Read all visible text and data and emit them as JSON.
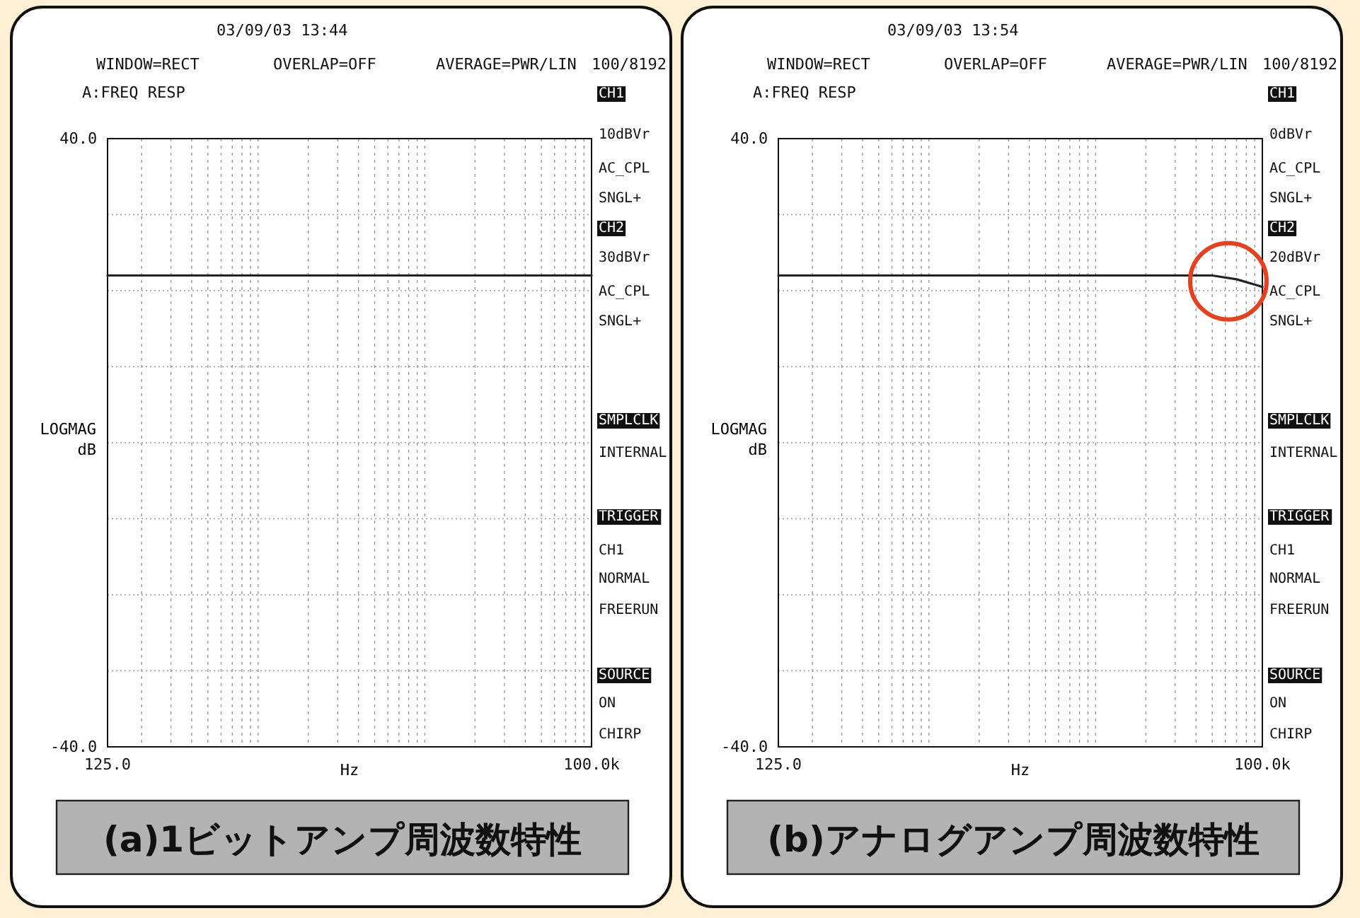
{
  "chart_data": [
    {
      "type": "line",
      "title": "(a)1ビットアンプ周波数特性",
      "xlabel": "Hz",
      "ylabel": "LOGMAG dB",
      "log": "x",
      "grid": true,
      "xlim": [
        125,
        100000
      ],
      "ylim": [
        -40,
        40
      ],
      "xticks": [
        {
          "value": 125,
          "label": "125.0"
        },
        {
          "value": 200,
          "label": null
        },
        {
          "value": 300,
          "label": null
        },
        {
          "value": 400,
          "label": null
        },
        {
          "value": 500,
          "label": null
        },
        {
          "value": 600,
          "label": null
        },
        {
          "value": 700,
          "label": null
        },
        {
          "value": 800,
          "label": null
        },
        {
          "value": 900,
          "label": null
        },
        {
          "value": 1000,
          "label": null
        },
        {
          "value": 2000,
          "label": null
        },
        {
          "value": 3000,
          "label": null
        },
        {
          "value": 4000,
          "label": null
        },
        {
          "value": 5000,
          "label": null
        },
        {
          "value": 6000,
          "label": null
        },
        {
          "value": 7000,
          "label": null
        },
        {
          "value": 8000,
          "label": null
        },
        {
          "value": 9000,
          "label": null
        },
        {
          "value": 10000,
          "label": null
        },
        {
          "value": 20000,
          "label": null
        },
        {
          "value": 30000,
          "label": null
        },
        {
          "value": 40000,
          "label": null
        },
        {
          "value": 50000,
          "label": null
        },
        {
          "value": 60000,
          "label": null
        },
        {
          "value": 70000,
          "label": null
        },
        {
          "value": 80000,
          "label": null
        },
        {
          "value": 90000,
          "label": null
        },
        {
          "value": 100000,
          "label": "100.0k"
        }
      ],
      "yticks": [
        {
          "value": -40,
          "label": "-40.0"
        },
        {
          "value": -30,
          "label": null
        },
        {
          "value": -20,
          "label": null
        },
        {
          "value": -10,
          "label": null
        },
        {
          "value": 0,
          "label": null
        },
        {
          "value": 10,
          "label": null
        },
        {
          "value": 20,
          "label": null
        },
        {
          "value": 30,
          "label": null
        },
        {
          "value": 40,
          "label": "40.0"
        }
      ],
      "x": [
        125,
        1000,
        10000,
        100000
      ],
      "series": [
        {
          "color": "#222222",
          "values": [
            22,
            22,
            22,
            22
          ]
        }
      ],
      "annotations": [
        "03/09/03 13:44",
        "WINDOW=RECT",
        "OVERLAP=OFF",
        "AVERAGE=PWR/LIN",
        "100/8192",
        "A:FREQ RESP",
        "CH1",
        "10dBVr",
        "AC_CPL",
        "SNGL+",
        "CH2",
        "30dBVr",
        "AC_CPL",
        "SNGL+",
        "SMPLCLK",
        "INTERNAL",
        "TRIGGER",
        "CH1",
        "NORMAL",
        "FREERUN",
        "SOURCE",
        "ON",
        "CHIRP"
      ]
    },
    {
      "type": "line",
      "title": "(b)アナログアンプ周波数特性",
      "xlabel": "Hz",
      "ylabel": "LOGMAG dB",
      "log": "x",
      "grid": true,
      "xlim": [
        125,
        100000
      ],
      "ylim": [
        -40,
        40
      ],
      "xticks": [
        {
          "value": 125,
          "label": "125.0"
        },
        {
          "value": 200,
          "label": null
        },
        {
          "value": 300,
          "label": null
        },
        {
          "value": 400,
          "label": null
        },
        {
          "value": 500,
          "label": null
        },
        {
          "value": 600,
          "label": null
        },
        {
          "value": 700,
          "label": null
        },
        {
          "value": 800,
          "label": null
        },
        {
          "value": 900,
          "label": null
        },
        {
          "value": 1000,
          "label": null
        },
        {
          "value": 2000,
          "label": null
        },
        {
          "value": 3000,
          "label": null
        },
        {
          "value": 4000,
          "label": null
        },
        {
          "value": 5000,
          "label": null
        },
        {
          "value": 6000,
          "label": null
        },
        {
          "value": 7000,
          "label": null
        },
        {
          "value": 8000,
          "label": null
        },
        {
          "value": 9000,
          "label": null
        },
        {
          "value": 10000,
          "label": null
        },
        {
          "value": 20000,
          "label": null
        },
        {
          "value": 30000,
          "label": null
        },
        {
          "value": 40000,
          "label": null
        },
        {
          "value": 50000,
          "label": null
        },
        {
          "value": 60000,
          "label": null
        },
        {
          "value": 70000,
          "label": null
        },
        {
          "value": 80000,
          "label": null
        },
        {
          "value": 90000,
          "label": null
        },
        {
          "value": 100000,
          "label": "100.0k"
        }
      ],
      "yticks": [
        {
          "value": -40,
          "label": "-40.0"
        },
        {
          "value": -30,
          "label": null
        },
        {
          "value": -20,
          "label": null
        },
        {
          "value": -10,
          "label": null
        },
        {
          "value": 0,
          "label": null
        },
        {
          "value": 10,
          "label": null
        },
        {
          "value": 20,
          "label": null
        },
        {
          "value": 30,
          "label": null
        },
        {
          "value": 40,
          "label": "40.0"
        }
      ],
      "x": [
        125,
        1000,
        10000,
        50000,
        70000,
        100000
      ],
      "series": [
        {
          "color": "#222222",
          "values": [
            22,
            22,
            22,
            22,
            21.5,
            20.5
          ]
        }
      ],
      "annotations": [
        "03/09/03 13:54",
        "WINDOW=RECT",
        "OVERLAP=OFF",
        "AVERAGE=PWR/LIN",
        "100/8192",
        "A:FREQ RESP",
        "CH1",
        "0dBVr",
        "AC_CPL",
        "SNGL+",
        "CH2",
        "20dBVr",
        "AC_CPL",
        "SNGL+",
        "SMPLCLK",
        "INTERNAL",
        "TRIGGER",
        "CH1",
        "NORMAL",
        "FREERUN",
        "SOURCE",
        "ON",
        "CHIRP"
      ]
    }
  ]
}
